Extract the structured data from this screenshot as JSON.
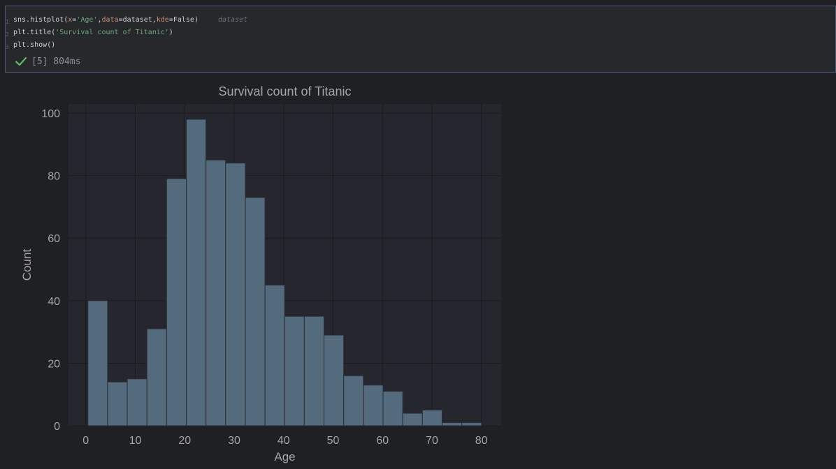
{
  "cell": {
    "line_numbers": [
      "1",
      "2",
      "3"
    ],
    "code_lines": [
      [
        {
          "t": "sns.histplot(",
          "c": ""
        },
        {
          "t": "x",
          "c": "kw"
        },
        {
          "t": "=",
          "c": ""
        },
        {
          "t": "'Age'",
          "c": "str"
        },
        {
          "t": ",",
          "c": ""
        },
        {
          "t": "data",
          "c": "kw"
        },
        {
          "t": "=dataset,",
          "c": ""
        },
        {
          "t": "kde",
          "c": "kw"
        },
        {
          "t": "=False)",
          "c": ""
        }
      ],
      [
        {
          "t": "plt.title(",
          "c": ""
        },
        {
          "t": "'Survival count of Titanic'",
          "c": "str"
        },
        {
          "t": ")",
          "c": ""
        }
      ],
      [
        {
          "t": "plt.show()",
          "c": ""
        }
      ]
    ],
    "inline_hint": "dataset",
    "status_text": "[5] 804ms",
    "status_icon": "check-icon",
    "status_color": "#5fb865"
  },
  "chart_data": {
    "type": "bar",
    "title": "Survival count of Titanic",
    "xlabel": "Age",
    "ylabel": "Count",
    "bin_edges": [
      0.42,
      4.4,
      8.38,
      12.36,
      16.34,
      20.32,
      24.3,
      28.28,
      32.26,
      36.24,
      40.21,
      44.19,
      48.17,
      52.15,
      56.13,
      60.11,
      64.09,
      68.07,
      72.05,
      76.03,
      80.01
    ],
    "values": [
      40,
      14,
      15,
      31,
      79,
      98,
      85,
      84,
      73,
      45,
      35,
      35,
      29,
      16,
      13,
      11,
      4,
      5,
      1,
      1
    ],
    "xlim": [
      -3.5,
      84.0
    ],
    "ylim": [
      0,
      102.9
    ],
    "xticks": [
      0,
      10,
      20,
      30,
      40,
      50,
      60,
      70,
      80
    ],
    "yticks": [
      0,
      20,
      40,
      60,
      80,
      100
    ],
    "grid": true,
    "bar_color": "#536b7c",
    "bar_edge_color": "#2b2d31",
    "plot_bg": "#26272e",
    "grid_color": "#1b1c1f",
    "text_color": "#a6a6a6"
  }
}
